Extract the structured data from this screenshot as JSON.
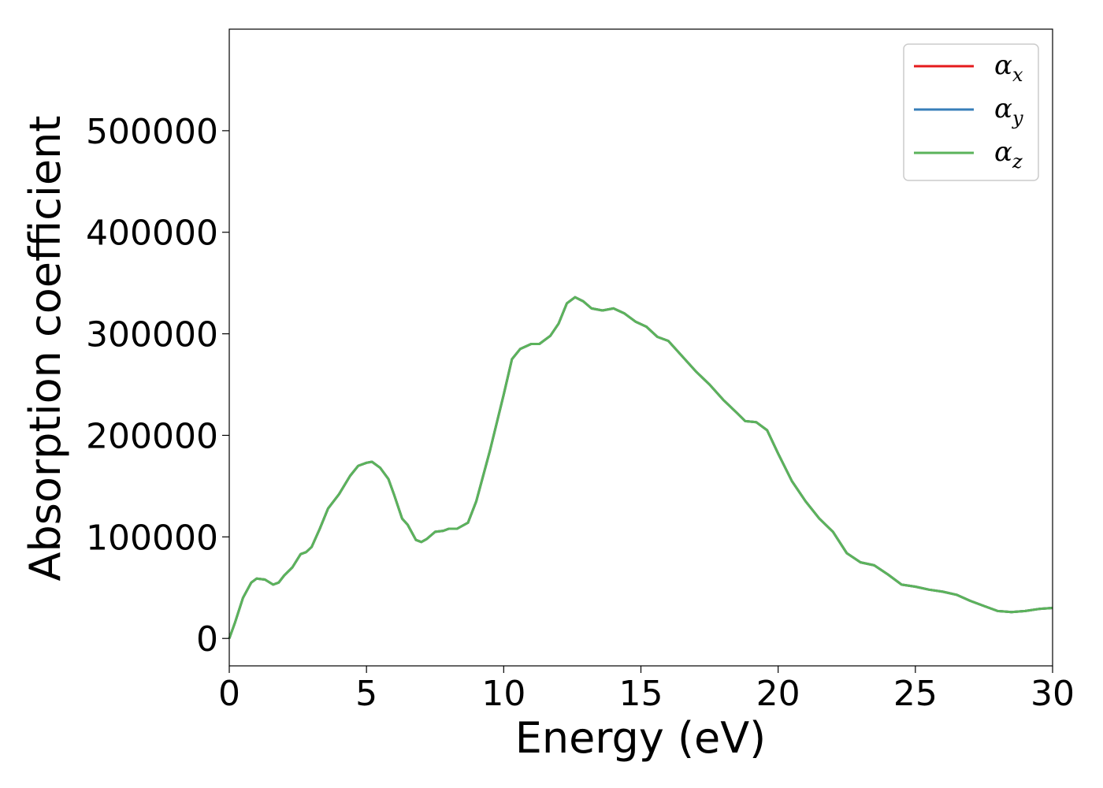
{
  "chart_data": {
    "type": "line",
    "xlabel": "Energy (eV)",
    "ylabel": "Absorption coefficient",
    "xlim": [
      0,
      30
    ],
    "ylim": [
      -27000,
      600000
    ],
    "xticks": [
      "0",
      "5",
      "10",
      "15",
      "20",
      "25",
      "30"
    ],
    "yticks": [
      "0",
      "100000",
      "200000",
      "300000",
      "400000",
      "500000"
    ],
    "grid": false,
    "legend_position": "top-right",
    "colors": {
      "alpha_x": "#e41a1c",
      "alpha_y": "#377eb8",
      "alpha_z": "#5bb35b"
    },
    "x": [
      0,
      0.2,
      0.5,
      0.8,
      1.0,
      1.3,
      1.6,
      1.8,
      2.0,
      2.3,
      2.6,
      2.8,
      3.0,
      3.3,
      3.6,
      4.0,
      4.4,
      4.7,
      5.0,
      5.2,
      5.5,
      5.8,
      6.0,
      6.3,
      6.5,
      6.8,
      7.0,
      7.2,
      7.5,
      7.8,
      8.0,
      8.3,
      8.7,
      9.0,
      9.5,
      10.0,
      10.3,
      10.6,
      11.0,
      11.3,
      11.7,
      12.0,
      12.3,
      12.6,
      12.9,
      13.2,
      13.6,
      14.0,
      14.4,
      14.8,
      15.2,
      15.6,
      16.0,
      16.5,
      17.0,
      17.5,
      18.0,
      18.5,
      18.8,
      19.2,
      19.6,
      20.0,
      20.5,
      21.0,
      21.5,
      22.0,
      22.5,
      23.0,
      23.5,
      24.0,
      24.5,
      25.0,
      25.5,
      26.0,
      26.5,
      27.0,
      27.5,
      28.0,
      28.5,
      29.0,
      29.5,
      30.0
    ],
    "series": [
      {
        "name": "α",
        "sub": "x",
        "values": [
          0,
          15000,
          40000,
          55000,
          59000,
          58000,
          53000,
          55000,
          62000,
          70000,
          83000,
          85000,
          90000,
          108000,
          128000,
          142000,
          160000,
          170000,
          173000,
          174000,
          168000,
          157000,
          142000,
          118000,
          112000,
          97000,
          95000,
          98000,
          105000,
          106000,
          108000,
          108000,
          114000,
          135000,
          185000,
          240000,
          275000,
          285000,
          290000,
          290000,
          298000,
          310000,
          330000,
          336000,
          332000,
          325000,
          323000,
          325000,
          320000,
          312000,
          307000,
          297000,
          293000,
          278000,
          263000,
          250000,
          235000,
          222000,
          214000,
          213000,
          205000,
          182000,
          155000,
          135000,
          118000,
          105000,
          84000,
          75000,
          72000,
          63000,
          53000,
          51000,
          48000,
          46000,
          43000,
          37000,
          32000,
          27000,
          26000,
          27000,
          29000,
          30000
        ]
      },
      {
        "name": "α",
        "sub": "y",
        "values": [
          0,
          15000,
          40000,
          55000,
          59000,
          58000,
          53000,
          55000,
          62000,
          70000,
          83000,
          85000,
          90000,
          108000,
          128000,
          142000,
          160000,
          170000,
          173000,
          174000,
          168000,
          157000,
          142000,
          118000,
          112000,
          97000,
          95000,
          98000,
          105000,
          106000,
          108000,
          108000,
          114000,
          135000,
          185000,
          240000,
          275000,
          285000,
          290000,
          290000,
          298000,
          310000,
          330000,
          336000,
          332000,
          325000,
          323000,
          325000,
          320000,
          312000,
          307000,
          297000,
          293000,
          278000,
          263000,
          250000,
          235000,
          222000,
          214000,
          213000,
          205000,
          182000,
          155000,
          135000,
          118000,
          105000,
          84000,
          75000,
          72000,
          63000,
          53000,
          51000,
          48000,
          46000,
          43000,
          37000,
          32000,
          27000,
          26000,
          27000,
          29000,
          30000
        ]
      },
      {
        "name": "α",
        "sub": "z",
        "values": [
          0,
          15000,
          40000,
          55000,
          59000,
          58000,
          53000,
          55000,
          62000,
          70000,
          83000,
          85000,
          90000,
          108000,
          128000,
          142000,
          160000,
          170000,
          173000,
          174000,
          168000,
          157000,
          142000,
          118000,
          112000,
          97000,
          95000,
          98000,
          105000,
          106000,
          108000,
          108000,
          114000,
          135000,
          185000,
          240000,
          275000,
          285000,
          290000,
          290000,
          298000,
          310000,
          330000,
          336000,
          332000,
          325000,
          323000,
          325000,
          320000,
          312000,
          307000,
          297000,
          293000,
          278000,
          263000,
          250000,
          235000,
          222000,
          214000,
          213000,
          205000,
          182000,
          155000,
          135000,
          118000,
          105000,
          84000,
          75000,
          72000,
          63000,
          53000,
          51000,
          48000,
          46000,
          43000,
          37000,
          32000,
          27000,
          26000,
          27000,
          29000,
          30000
        ]
      }
    ]
  }
}
